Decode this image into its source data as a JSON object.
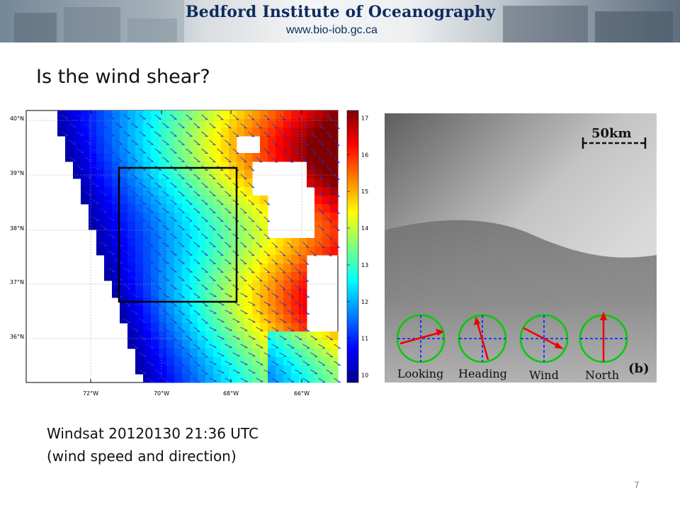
{
  "banner": {
    "title": "Bedford Institute of Oceanography",
    "url": "www.bio-iob.gc.ca"
  },
  "slide_title": "Is the wind shear?",
  "map": {
    "lat_labels": [
      "40°N",
      "39°N",
      "38°N",
      "37°N",
      "36°N"
    ],
    "lon_labels": [
      "72°W",
      "70°W",
      "68°W",
      "66°W"
    ],
    "colorbar_labels": [
      "17",
      "16",
      "15",
      "14",
      "13",
      "12",
      "11",
      "10"
    ],
    "colorbar_range": [
      9.8,
      17.2
    ]
  },
  "sar": {
    "scale_label": "50km",
    "panel_label": "(b)",
    "compass_labels": [
      "Looking",
      "Heading",
      "Wind",
      "North"
    ]
  },
  "caption": {
    "line1": "Windsat 20120130  21:36 UTC",
    "line2": "(wind speed and direction)"
  },
  "page_number": "7"
}
